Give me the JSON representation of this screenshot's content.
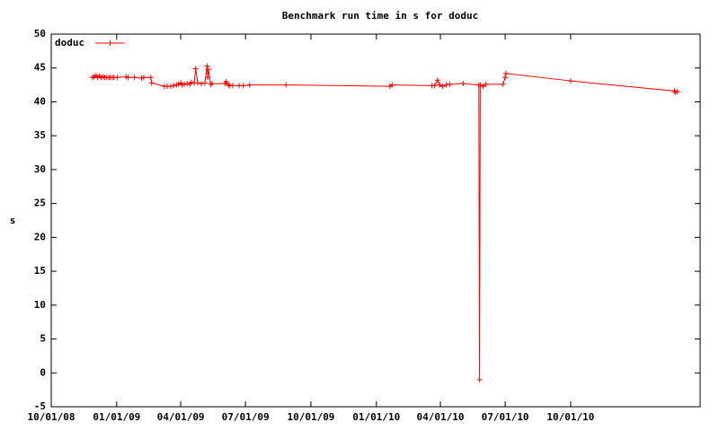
{
  "chart_data": {
    "type": "line",
    "title": "Benchmark run time in s for doduc",
    "y_label": "s",
    "legend": "top left",
    "grid": false,
    "x": [
      "2008-11-28",
      "2008-11-30",
      "2008-12-03",
      "2008-12-05",
      "2008-12-08",
      "2008-12-10",
      "2008-12-13",
      "2008-12-15",
      "2008-12-18",
      "2008-12-21",
      "2008-12-23",
      "2008-12-26",
      "2008-12-28",
      "2009-01-02",
      "2009-01-14",
      "2009-01-17",
      "2009-01-26",
      "2009-02-05",
      "2009-02-08",
      "2009-02-18",
      "2009-02-19",
      "2009-03-09",
      "2009-03-13",
      "2009-03-18",
      "2009-03-22",
      "2009-03-26",
      "2009-03-29",
      "2009-04-01",
      "2009-04-03",
      "2009-04-06",
      "2009-04-10",
      "2009-04-14",
      "2009-04-16",
      "2009-04-20",
      "2009-04-22",
      "2009-04-25",
      "2009-04-30",
      "2009-05-05",
      "2009-05-08",
      "2009-05-09",
      "2009-05-10",
      "2009-05-13",
      "2009-05-15",
      "2009-06-02",
      "2009-06-04",
      "2009-06-07",
      "2009-06-09",
      "2009-06-13",
      "2009-06-22",
      "2009-06-28",
      "2009-07-07",
      "2009-08-27",
      "2010-01-20",
      "2010-01-23",
      "2010-03-20",
      "2010-03-24",
      "2010-03-28",
      "2010-03-31",
      "2010-04-04",
      "2010-04-09",
      "2010-04-14",
      "2010-05-03",
      "2010-05-25",
      "2010-05-26",
      "2010-05-27",
      "2010-05-31",
      "2010-06-04",
      "2010-06-28",
      "2010-07-01",
      "2010-07-02",
      "2010-10-01",
      "2011-02-24",
      "2011-02-25",
      "2011-02-28"
    ],
    "series": [
      {
        "name": "doduc",
        "color": "#ff0000",
        "values": [
          43.6,
          43.7,
          43.9,
          43.6,
          43.8,
          43.6,
          43.7,
          43.6,
          43.6,
          43.6,
          43.6,
          43.6,
          43.6,
          43.6,
          43.7,
          43.6,
          43.6,
          43.5,
          43.6,
          43.6,
          42.8,
          42.3,
          42.3,
          42.3,
          42.4,
          42.5,
          42.6,
          42.8,
          42.5,
          42.6,
          42.7,
          42.6,
          42.9,
          42.8,
          44.9,
          42.8,
          42.7,
          42.8,
          45.3,
          43.6,
          44.8,
          42.6,
          42.7,
          42.7,
          43.0,
          42.5,
          42.4,
          42.4,
          42.4,
          42.4,
          42.5,
          42.5,
          42.3,
          42.5,
          42.4,
          42.4,
          43.2,
          42.5,
          42.3,
          42.5,
          42.6,
          42.7,
          42.5,
          -1.0,
          42.5,
          42.3,
          42.6,
          42.6,
          43.6,
          44.2,
          43.1,
          41.6,
          41.4,
          41.5
        ]
      }
    ],
    "xlim": [
      "2008-10-01",
      "2011-04-01"
    ],
    "xticks": [
      {
        "value": "2008-10-01",
        "label": "10/01/08"
      },
      {
        "value": "2009-01-01",
        "label": "01/01/09"
      },
      {
        "value": "2009-04-01",
        "label": "04/01/09"
      },
      {
        "value": "2009-07-01",
        "label": "07/01/09"
      },
      {
        "value": "2009-10-01",
        "label": "10/01/09"
      },
      {
        "value": "2010-01-01",
        "label": "01/01/10"
      },
      {
        "value": "2010-04-01",
        "label": "04/01/10"
      },
      {
        "value": "2010-07-01",
        "label": "07/01/10"
      },
      {
        "value": "2010-10-01",
        "label": "10/01/10"
      }
    ],
    "ylim": [
      -5,
      50
    ],
    "yticks": [
      -5,
      0,
      5,
      10,
      15,
      20,
      25,
      30,
      35,
      40,
      45,
      50
    ]
  }
}
